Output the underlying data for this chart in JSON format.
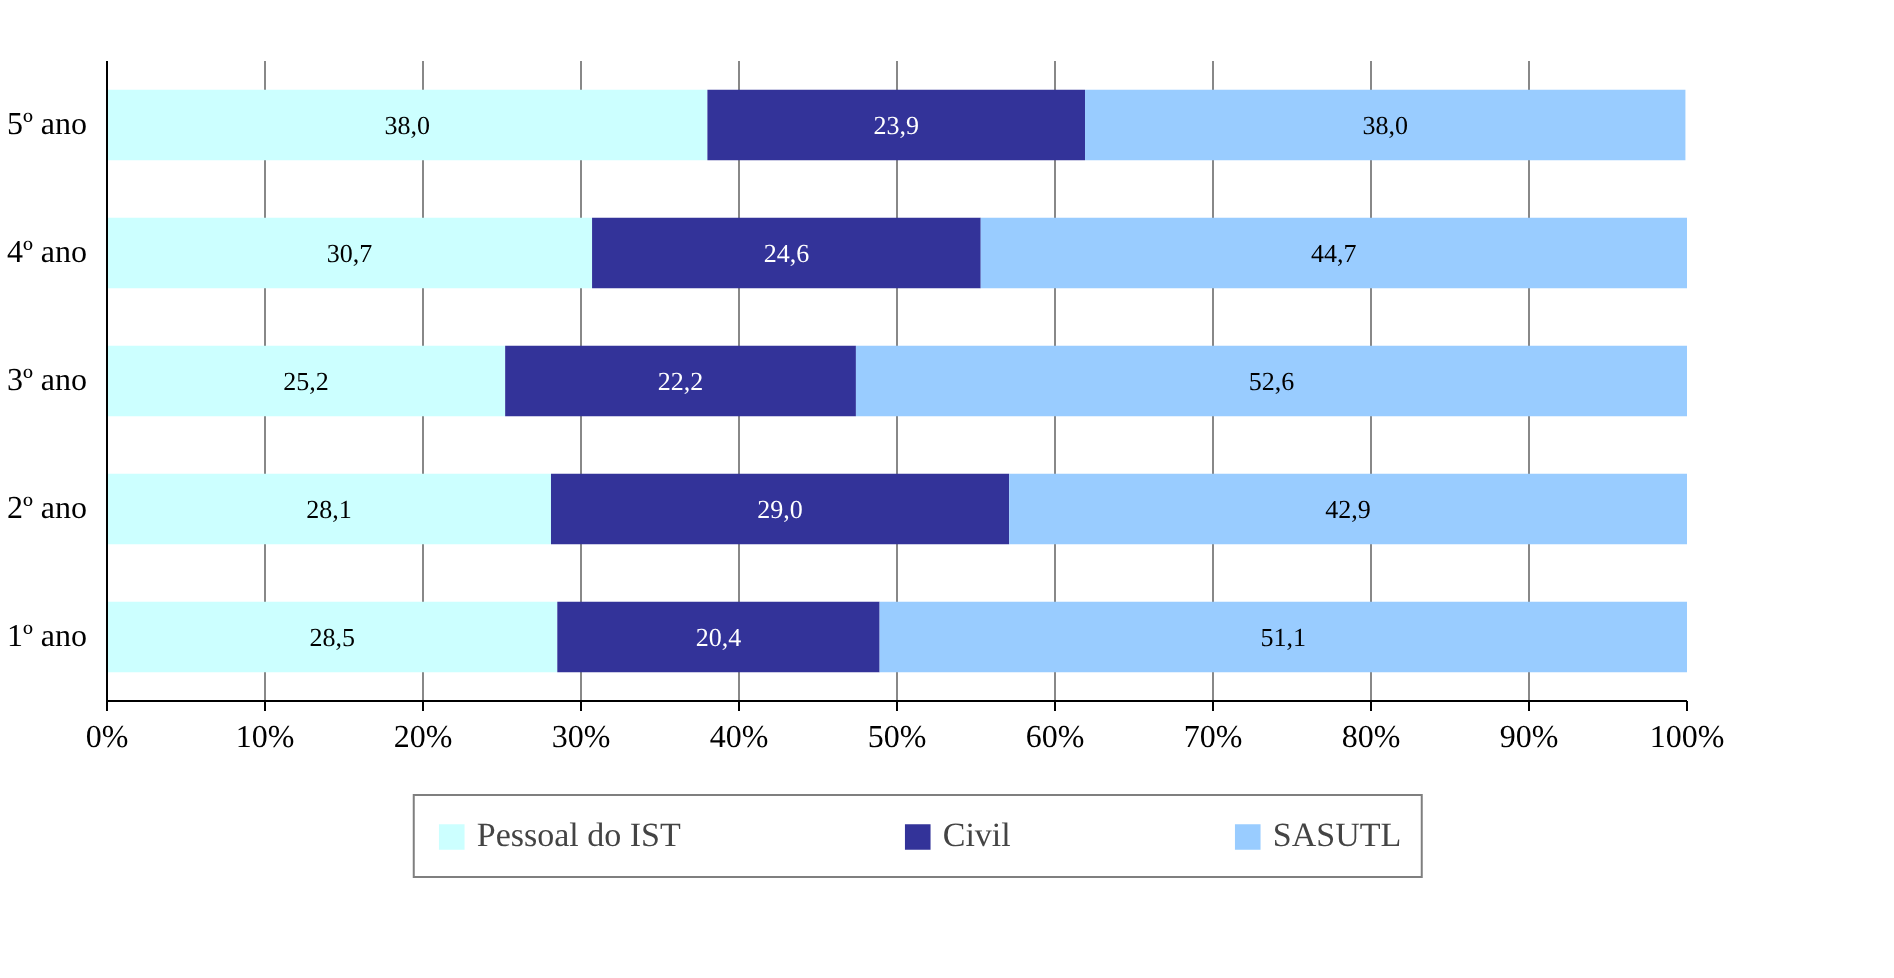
{
  "chart_data": {
    "type": "bar",
    "orientation": "horizontal",
    "stacked": true,
    "categories": [
      "5º ano",
      "4º ano",
      "3º ano",
      "2º ano",
      "1º ano"
    ],
    "series": [
      {
        "name": "Pessoal do IST",
        "color": "#ccffff",
        "values": [
          38.0,
          30.7,
          25.2,
          28.1,
          28.5
        ],
        "value_labels": [
          "38,0",
          "30,7",
          "25,2",
          "28,1",
          "28,5"
        ]
      },
      {
        "name": "Civil",
        "color": "#333399",
        "values": [
          23.9,
          24.6,
          22.2,
          29.0,
          20.4
        ],
        "value_labels": [
          "23,9",
          "24,6",
          "22,2",
          "29,0",
          "20,4"
        ]
      },
      {
        "name": "SASUTL",
        "color": "#99ccff",
        "values": [
          38.0,
          44.7,
          52.6,
          42.9,
          51.1
        ],
        "value_labels": [
          "38,0",
          "44,7",
          "52,6",
          "42,9",
          "51,1"
        ]
      }
    ],
    "xlim": [
      0,
      100
    ],
    "xticks": [
      {
        "value": 0,
        "label": "0%"
      },
      {
        "value": 10,
        "label": "10%"
      },
      {
        "value": 20,
        "label": "20%"
      },
      {
        "value": 30,
        "label": "30%"
      },
      {
        "value": 40,
        "label": "40%"
      },
      {
        "value": 50,
        "label": "50%"
      },
      {
        "value": 60,
        "label": "60%"
      },
      {
        "value": 70,
        "label": "70%"
      },
      {
        "value": 80,
        "label": "80%"
      },
      {
        "value": 90,
        "label": "90%"
      },
      {
        "value": 100,
        "label": "100%"
      }
    ],
    "grid": "x",
    "legend": "bottom"
  }
}
